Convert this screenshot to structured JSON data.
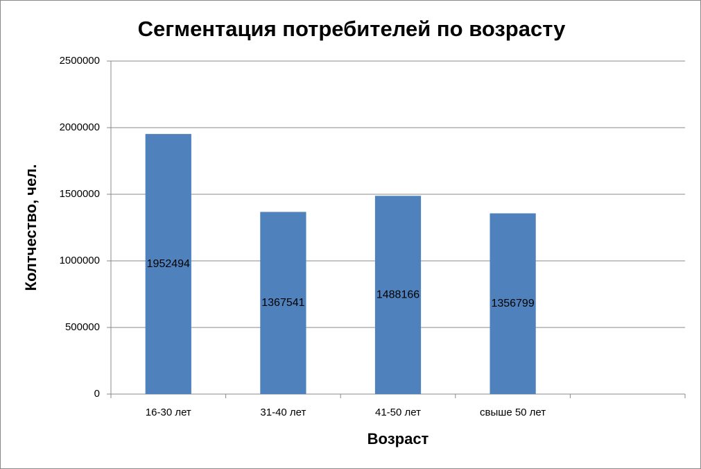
{
  "chart_data": {
    "type": "bar",
    "title": "Сегментация потребителей по возрасту",
    "x_label": "Возраст",
    "y_label": "Колтчество, чел.",
    "categories": [
      "16-30 лет",
      "31-40 лет",
      "41-50 лет",
      "свыше 50 лет",
      null
    ],
    "values": [
      1952494,
      1367541,
      1488166,
      1356799,
      null
    ],
    "color": "#4f81bd",
    "ylim": [
      0,
      2500000
    ],
    "yticks": [
      0,
      500000,
      1000000,
      1500000,
      2000000,
      2500000
    ],
    "grid": true
  }
}
